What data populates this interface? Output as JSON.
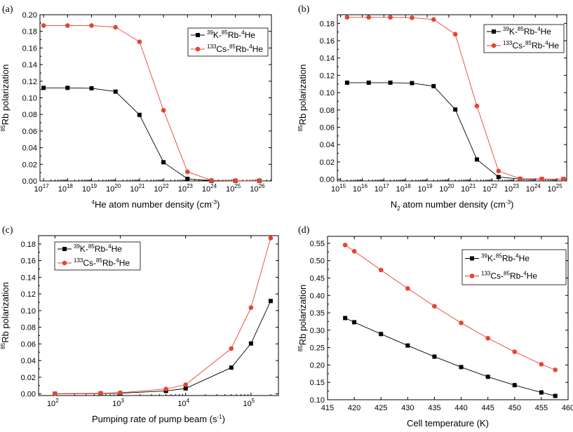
{
  "chart_data": [
    {
      "panel": "(a)",
      "type": "line",
      "xscale": "log",
      "xlim_exp": [
        16.85,
        26.5
      ],
      "ylim": [
        0,
        0.2
      ],
      "yticks": [
        0.0,
        0.02,
        0.04,
        0.06,
        0.08,
        0.1,
        0.12,
        0.14,
        0.16,
        0.18,
        0.2
      ],
      "ytick_labels": [
        "0.00",
        "0.02",
        "0.04",
        "0.06",
        "0.08",
        "0.10",
        "0.12",
        "0.14",
        "0.16",
        "0.18",
        "0.20"
      ],
      "xtick_exps": [
        17,
        18,
        19,
        20,
        21,
        22,
        23,
        24,
        25,
        26
      ],
      "xtick_base": "10",
      "ylabel": {
        "pre": "85",
        "main": "Rb polarization"
      },
      "xlabel": {
        "sup": "4",
        "main": "He atom number density (cm",
        "sup2": "-3",
        "end": ")"
      },
      "legend": {
        "position": "top-right",
        "entries": [
          {
            "p1": "39",
            "t1": "K-",
            "p2": "85",
            "t2": "Rb-",
            "p3": "4",
            "t3": "He"
          },
          {
            "p1": "133",
            "t1": "Cs-",
            "p2": "85",
            "t2": "Rb-",
            "p3": "4",
            "t3": "He"
          }
        ]
      },
      "series": [
        {
          "name": "39K-85Rb-4He",
          "color": "#000000",
          "marker": "square",
          "x_exp": [
            17,
            18,
            19,
            20,
            21,
            22,
            23,
            24,
            25,
            26
          ],
          "y": [
            0.112,
            0.112,
            0.1115,
            0.1075,
            0.0795,
            0.0225,
            0.0025,
            0.0002,
            0.0001,
            0.0001
          ]
        },
        {
          "name": "133Cs-85Rb-4He",
          "color": "#e8432e",
          "marker": "circle",
          "x_exp": [
            17,
            18,
            19,
            20,
            21,
            22,
            23,
            24,
            25,
            26
          ],
          "y": [
            0.187,
            0.187,
            0.187,
            0.185,
            0.1675,
            0.085,
            0.011,
            0.0007,
            0.0002,
            0.0001
          ]
        }
      ]
    },
    {
      "panel": "(b)",
      "type": "line",
      "xscale": "log",
      "xlim_exp": [
        14.85,
        25.45
      ],
      "ylim": [
        -0.002,
        0.19
      ],
      "yticks": [
        0.0,
        0.02,
        0.04,
        0.06,
        0.08,
        0.1,
        0.12,
        0.14,
        0.16,
        0.18
      ],
      "ytick_labels": [
        "0.00",
        "0.02",
        "0.04",
        "0.06",
        "0.08",
        "0.10",
        "0.12",
        "0.14",
        "0.16",
        "0.18"
      ],
      "xtick_exps": [
        15,
        16,
        17,
        18,
        19,
        20,
        21,
        22,
        23,
        24,
        25
      ],
      "xtick_base": "10",
      "ylabel": {
        "pre": "85",
        "main": "Rb polarization"
      },
      "xlabel": {
        "main": "N",
        "sub": "2",
        "rest": " atom number density (cm",
        "sup2": "-3",
        "end": ")"
      },
      "legend": {
        "position": "top-right",
        "entries": [
          {
            "p1": "39",
            "t1": "K-",
            "p2": "85",
            "t2": "Rb-",
            "p3": "4",
            "t3": "He"
          },
          {
            "p1": "133",
            "t1": "Cs-",
            "p2": "85",
            "t2": "Rb-",
            "p3": "4",
            "t3": "He"
          }
        ]
      },
      "series": [
        {
          "name": "39K-85Rb-4He",
          "color": "#000000",
          "marker": "square",
          "x_exp": [
            15.3,
            16.3,
            17.3,
            18.3,
            19.3,
            20.3,
            21.3,
            22.3,
            23.3,
            24.3,
            25.3
          ],
          "y": [
            0.1115,
            0.1115,
            0.1115,
            0.111,
            0.1075,
            0.0805,
            0.0228,
            0.0025,
            0.0002,
            0.0001,
            0.0001
          ]
        },
        {
          "name": "133Cs-85Rb-4He",
          "color": "#e8432e",
          "marker": "circle",
          "x_exp": [
            15.3,
            16.3,
            17.3,
            18.3,
            19.3,
            20.3,
            21.3,
            22.3,
            23.3,
            24.3,
            25.3
          ],
          "y": [
            0.187,
            0.187,
            0.187,
            0.1865,
            0.1845,
            0.1675,
            0.0845,
            0.0095,
            0.0006,
            0.0002,
            0.0001
          ]
        }
      ]
    },
    {
      "panel": "(c)",
      "type": "line",
      "xscale": "log",
      "xlim_exp": [
        1.75,
        5.42
      ],
      "ylim": [
        -0.002,
        0.19
      ],
      "yticks": [
        0.0,
        0.02,
        0.04,
        0.06,
        0.08,
        0.1,
        0.12,
        0.14,
        0.16,
        0.18
      ],
      "ytick_labels": [
        "0.00",
        "0.02",
        "0.04",
        "0.06",
        "0.08",
        "0.10",
        "0.12",
        "0.14",
        "0.16",
        "0.18"
      ],
      "xtick_exps": [
        2,
        3,
        4,
        5
      ],
      "xtick_base": "10",
      "ylabel": {
        "pre": "85",
        "main": "Rb polarization"
      },
      "xlabel": {
        "main": "Pumping rate of pump beam (s",
        "sup2": "-1",
        "end": ")"
      },
      "legend": {
        "position": "top-left",
        "entries": [
          {
            "p1": "39",
            "t1": "K-",
            "p2": "85",
            "t2": "Rb-",
            "p3": "4",
            "t3": "He"
          },
          {
            "p1": "133",
            "t1": "Cs-",
            "p2": "85",
            "t2": "Rb-",
            "p3": "4",
            "t3": "He"
          }
        ]
      },
      "series": [
        {
          "name": "39K-85Rb-4He",
          "color": "#000000",
          "marker": "square",
          "x": [
            100,
            500,
            1000,
            5000,
            10000,
            50000,
            100000,
            200000
          ],
          "y": [
            0.0002,
            0.0005,
            0.0008,
            0.0035,
            0.0065,
            0.0315,
            0.0605,
            0.1115
          ]
        },
        {
          "name": "133Cs-85Rb-4He",
          "color": "#e8432e",
          "marker": "circle",
          "x": [
            100,
            500,
            1000,
            5000,
            10000,
            50000,
            100000,
            200000
          ],
          "y": [
            0.0003,
            0.0008,
            0.0013,
            0.0058,
            0.011,
            0.0545,
            0.1035,
            0.187
          ]
        }
      ]
    },
    {
      "panel": "(d)",
      "type": "line",
      "xscale": "linear",
      "xlim": [
        415,
        460
      ],
      "ylim": [
        0.1,
        0.57
      ],
      "yticks": [
        0.1,
        0.15,
        0.2,
        0.25,
        0.3,
        0.35,
        0.4,
        0.45,
        0.5,
        0.55
      ],
      "ytick_labels": [
        "0.10",
        "0.15",
        "0.20",
        "0.25",
        "0.30",
        "0.35",
        "0.40",
        "0.45",
        "0.50",
        "0.55"
      ],
      "xticks": [
        415,
        420,
        425,
        430,
        435,
        440,
        445,
        450,
        455,
        460
      ],
      "xtick_labels": [
        "415",
        "420",
        "425",
        "430",
        "435",
        "440",
        "445",
        "450",
        "455",
        "460"
      ],
      "ylabel": {
        "pre": "85",
        "main": "Rb polarization"
      },
      "xlabel": {
        "main": "Cell temperature (K)"
      },
      "legend": {
        "position": "top-right",
        "entries": [
          {
            "p1": "39",
            "t1": "K-",
            "p2": "85",
            "t2": "Rb-",
            "p3": "4",
            "t3": "He"
          },
          {
            "p1": "133",
            "t1": "Cs-",
            "p2": "85",
            "t2": "Rb-",
            "p3": "4",
            "t3": "He"
          }
        ]
      },
      "series": [
        {
          "name": "39K-85Rb-4He",
          "color": "#000000",
          "marker": "square",
          "x": [
            418.3,
            420,
            425,
            430,
            435,
            440,
            445,
            450,
            455,
            457.6
          ],
          "y": [
            0.335,
            0.323,
            0.289,
            0.256,
            0.224,
            0.194,
            0.166,
            0.142,
            0.121,
            0.111
          ]
        },
        {
          "name": "133Cs-85Rb-4He",
          "color": "#e8432e",
          "marker": "circle",
          "x": [
            418.3,
            420,
            425,
            430,
            435,
            440,
            445,
            450,
            455,
            457.6
          ],
          "y": [
            0.545,
            0.527,
            0.473,
            0.42,
            0.369,
            0.321,
            0.277,
            0.238,
            0.202,
            0.186
          ]
        }
      ]
    }
  ]
}
